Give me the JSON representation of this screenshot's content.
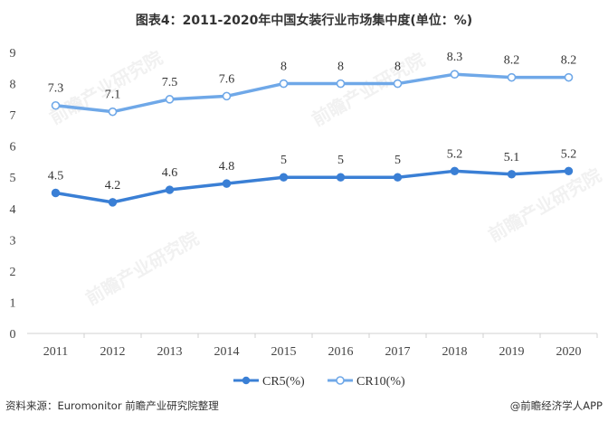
{
  "chart_data": {
    "type": "line",
    "title": "图表4：2011-2020年中国女装行业市场集中度(单位：%)",
    "categories": [
      "2011",
      "2012",
      "2013",
      "2014",
      "2015",
      "2016",
      "2017",
      "2018",
      "2019",
      "2020"
    ],
    "series": [
      {
        "name": "CR5(%)",
        "values": [
          4.5,
          4.2,
          4.6,
          4.8,
          5,
          5,
          5,
          5.2,
          5.1,
          5.2
        ],
        "labels": [
          "4.5",
          "4.2",
          "4.6",
          "4.8",
          "5",
          "5",
          "5",
          "5.2",
          "5.1",
          "5.2"
        ],
        "color": "#3a7fd5",
        "marker": "filled"
      },
      {
        "name": "CR10(%)",
        "values": [
          7.3,
          7.1,
          7.5,
          7.6,
          8,
          8,
          8,
          8.3,
          8.2,
          8.2
        ],
        "labels": [
          "7.3",
          "7.1",
          "7.5",
          "7.6",
          "8",
          "8",
          "8",
          "8.3",
          "8.2",
          "8.2"
        ],
        "color": "#6fa8e8",
        "marker": "hollow"
      }
    ],
    "yticks": [
      "0",
      "1",
      "2",
      "3",
      "4",
      "5",
      "6",
      "7",
      "8",
      "9"
    ],
    "ylim": [
      0,
      9
    ],
    "grid": false,
    "legend_position": "bottom"
  },
  "source": "资料来源：Euromonitor 前瞻产业研究院整理",
  "brand": "@前瞻经济学人APP",
  "watermark": "前瞻产业研究院",
  "colors": {
    "axis": "#d0d0d0",
    "text": "#333333"
  }
}
